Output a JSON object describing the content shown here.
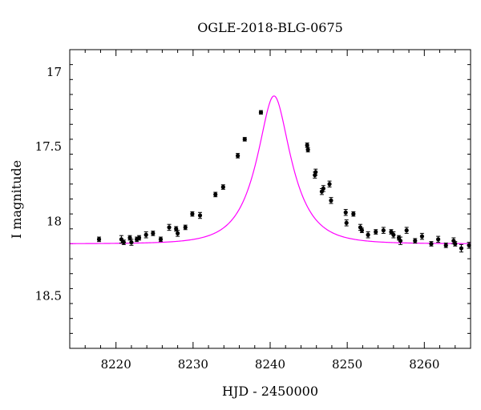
{
  "chart_data": {
    "type": "scatter",
    "title": "OGLE-2018-BLG-0675",
    "xlabel": "HJD - 2450000",
    "ylabel": "I magnitude",
    "xlim": [
      8214,
      8266
    ],
    "ylim": [
      18.85,
      16.85
    ],
    "y_inverted": true,
    "grid": false,
    "x_major_ticks": [
      8220,
      8230,
      8240,
      8250,
      8260
    ],
    "x_tick_labels": [
      "8220",
      "8230",
      "8240",
      "8250",
      "8260"
    ],
    "x_minor_step": 2,
    "y_major_ticks": [
      17,
      17.5,
      18,
      18.5
    ],
    "y_tick_labels": [
      "17",
      "17.5",
      "18",
      "18.5"
    ],
    "y_minor_step": 0.1,
    "colors": {
      "model": "#ff00ff",
      "points": "#000000"
    },
    "series": [
      {
        "type": "scatter",
        "x": [
          8217.8,
          8220.7,
          8221.0,
          8221.8,
          8222.0,
          8222.7,
          8223.0,
          8223.9,
          8224.8,
          8225.8,
          8226.9,
          8227.8,
          8228.0,
          8229.0,
          8229.9,
          8230.9,
          8232.9,
          8233.9,
          8235.8,
          8236.7,
          8238.8,
          8244.8,
          8244.9,
          8245.8,
          8245.9,
          8246.7,
          8246.9,
          8247.7,
          8247.9,
          8249.8,
          8249.9,
          8250.8,
          8251.7,
          8251.9,
          8252.7,
          8253.7,
          8254.7,
          8255.7,
          8256.0,
          8256.7,
          8256.9,
          8257.7,
          8258.8,
          8259.7,
          8260.9,
          8261.8,
          8262.8,
          8263.8,
          8264.0,
          8264.8,
          8265.8
        ],
        "y": [
          18.12,
          18.12,
          18.14,
          18.11,
          18.14,
          18.12,
          18.11,
          18.09,
          18.08,
          18.12,
          18.04,
          18.05,
          18.08,
          18.04,
          17.95,
          17.96,
          17.82,
          17.77,
          17.56,
          17.45,
          17.27,
          17.49,
          17.52,
          17.69,
          17.67,
          17.8,
          17.78,
          17.75,
          17.86,
          17.94,
          18.01,
          17.95,
          18.04,
          18.06,
          18.09,
          18.07,
          18.06,
          18.07,
          18.09,
          18.11,
          18.13,
          18.06,
          18.13,
          18.1,
          18.15,
          18.12,
          18.16,
          18.13,
          18.15,
          18.18,
          18.16
        ],
        "yerr": [
          0.015,
          0.025,
          0.015,
          0.015,
          0.02,
          0.015,
          0.015,
          0.02,
          0.015,
          0.015,
          0.02,
          0.015,
          0.02,
          0.015,
          0.015,
          0.02,
          0.015,
          0.015,
          0.015,
          0.012,
          0.012,
          0.015,
          0.015,
          0.02,
          0.02,
          0.02,
          0.02,
          0.02,
          0.02,
          0.02,
          0.02,
          0.015,
          0.02,
          0.015,
          0.02,
          0.015,
          0.02,
          0.015,
          0.02,
          0.015,
          0.025,
          0.02,
          0.015,
          0.02,
          0.015,
          0.02,
          0.015,
          0.02,
          0.015,
          0.025,
          0.02
        ]
      },
      {
        "type": "line",
        "model": {
          "baseline_mag": 18.15,
          "peak_time": 8240.5,
          "peak_mag": 17.16,
          "tE": 4.1
        }
      }
    ]
  }
}
